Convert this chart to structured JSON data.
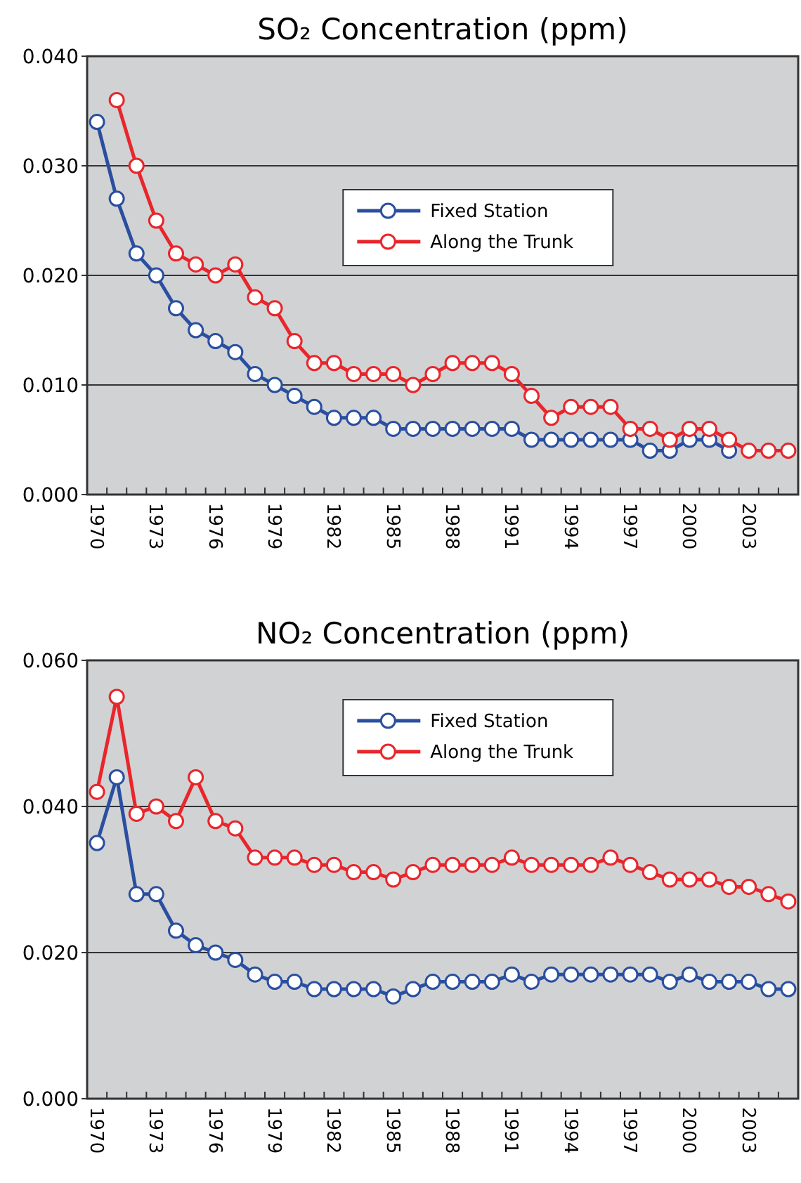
{
  "chart_data": [
    {
      "type": "line",
      "title": "SO₂ Concentration (ppm)",
      "categories": [
        "1970",
        null,
        null,
        "1973",
        null,
        null,
        "1976",
        null,
        null,
        "1979",
        null,
        null,
        "1982",
        null,
        null,
        "1985",
        null,
        null,
        "1988",
        null,
        null,
        "1991",
        null,
        null,
        "1994",
        null,
        null,
        "1997",
        null,
        null,
        "2000",
        null,
        null,
        "2003",
        null,
        null
      ],
      "series": [
        {
          "name": "Fixed Station",
          "color": "#2a4fa0",
          "values": [
            0.034,
            0.027,
            0.022,
            0.02,
            0.017,
            0.015,
            0.014,
            0.013,
            0.011,
            0.01,
            0.009,
            0.008,
            0.007,
            0.007,
            0.007,
            0.006,
            0.006,
            0.006,
            0.006,
            0.006,
            0.006,
            0.006,
            0.005,
            0.005,
            0.005,
            0.005,
            0.005,
            0.005,
            0.004,
            0.004,
            0.005,
            0.005,
            0.004,
            null,
            null,
            null
          ]
        },
        {
          "name": "Along the Trunk",
          "color": "#e8262b",
          "values": [
            null,
            0.036,
            0.03,
            0.025,
            0.022,
            0.021,
            0.02,
            0.021,
            0.018,
            0.017,
            0.014,
            0.012,
            0.012,
            0.011,
            0.011,
            0.011,
            0.01,
            0.011,
            0.012,
            0.012,
            0.012,
            0.011,
            0.009,
            0.007,
            0.008,
            0.008,
            0.008,
            0.006,
            0.006,
            0.005,
            0.006,
            0.006,
            0.005,
            0.004,
            0.004,
            0.004
          ]
        }
      ],
      "ylim": [
        0,
        0.04
      ],
      "yticks": [
        {
          "value": 0,
          "label": "0.000"
        },
        {
          "value": 0.01,
          "label": "0.010"
        },
        {
          "value": 0.02,
          "label": "0.020"
        },
        {
          "value": 0.03,
          "label": "0.030"
        },
        {
          "value": 0.04,
          "label": "0.040"
        }
      ],
      "grid": "y",
      "legend": "top",
      "marker": "circle",
      "line_style": "solid"
    },
    {
      "type": "line",
      "title": "NO₂ Concentration (ppm)",
      "categories": [
        "1970",
        null,
        null,
        "1973",
        null,
        null,
        "1976",
        null,
        null,
        "1979",
        null,
        null,
        "1982",
        null,
        null,
        "1985",
        null,
        null,
        "1988",
        null,
        null,
        "1991",
        null,
        null,
        "1994",
        null,
        null,
        "1997",
        null,
        null,
        "2000",
        null,
        null,
        "2003",
        null,
        null
      ],
      "series": [
        {
          "name": "Fixed Station",
          "color": "#2a4fa0",
          "values": [
            0.035,
            0.044,
            0.028,
            0.028,
            0.023,
            0.021,
            0.02,
            0.019,
            0.017,
            0.016,
            0.016,
            0.015,
            0.015,
            0.015,
            0.015,
            0.014,
            0.015,
            0.016,
            0.016,
            0.016,
            0.016,
            0.017,
            0.016,
            0.017,
            0.017,
            0.017,
            0.017,
            0.017,
            0.017,
            0.016,
            0.017,
            0.016,
            0.016,
            0.016,
            0.015,
            0.015
          ]
        },
        {
          "name": "Along the Trunk",
          "color": "#e8262b",
          "values": [
            0.042,
            0.055,
            0.039,
            0.04,
            0.038,
            0.044,
            0.038,
            0.037,
            0.033,
            0.033,
            0.033,
            0.032,
            0.032,
            0.031,
            0.031,
            0.03,
            0.031,
            0.032,
            0.032,
            0.032,
            0.032,
            0.033,
            0.032,
            0.032,
            0.032,
            0.032,
            0.033,
            0.032,
            0.031,
            0.03,
            0.03,
            0.03,
            0.029,
            0.029,
            0.028,
            0.027
          ]
        }
      ],
      "ylim": [
        0,
        0.06
      ],
      "yticks": [
        {
          "value": 0,
          "label": "0.000"
        },
        {
          "value": 0.02,
          "label": "0.020"
        },
        {
          "value": 0.04,
          "label": "0.040"
        },
        {
          "value": 0.06,
          "label": "0.060"
        }
      ],
      "grid": "y",
      "legend": "top",
      "marker": "circle",
      "line_style": "solid"
    }
  ]
}
